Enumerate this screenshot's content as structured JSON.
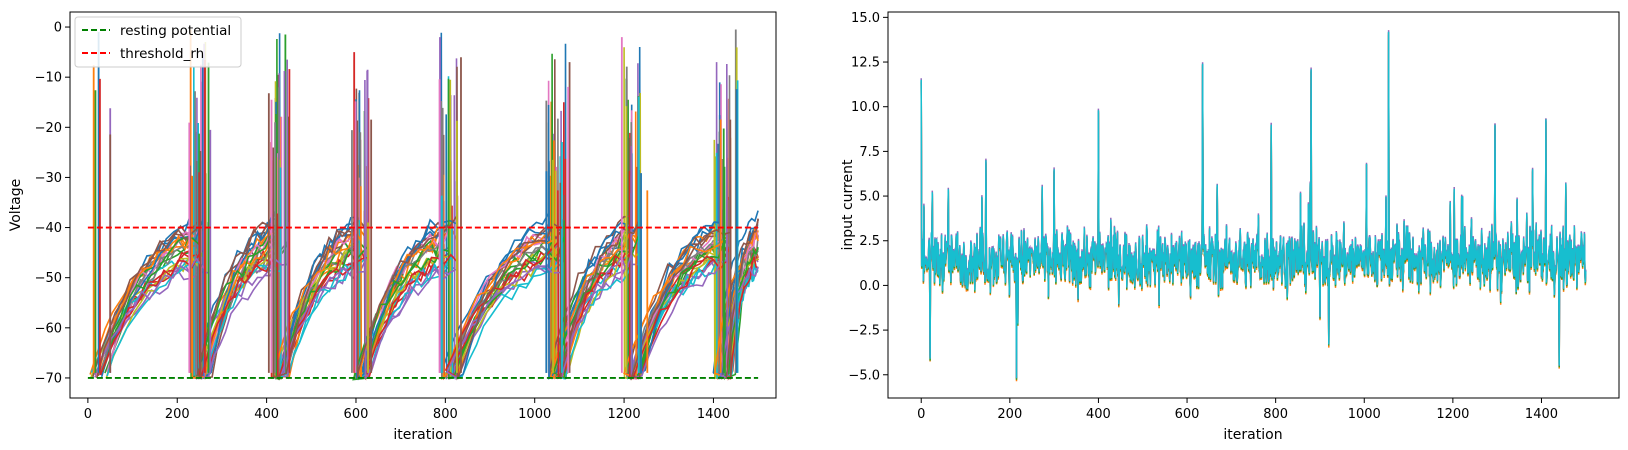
{
  "chart_data": [
    {
      "type": "line",
      "title": "",
      "xlabel": "iteration",
      "ylabel": "Voltage",
      "xlim": [
        -40,
        1540
      ],
      "ylim": [
        -74,
        3
      ],
      "xticks": [
        0,
        200,
        400,
        600,
        800,
        1000,
        1200,
        1400
      ],
      "yticks": [
        -70,
        -60,
        -50,
        -40,
        -30,
        -20,
        -10,
        0
      ],
      "grid": false,
      "legend_position": "top-left",
      "legend": [
        {
          "label": "resting potential",
          "color": "#008000",
          "style": "dashed"
        },
        {
          "label": "threshold_rh",
          "color": "#ff0000",
          "style": "dashed"
        }
      ],
      "reference_lines": [
        {
          "name": "resting potential",
          "y": -70,
          "x_range": [
            0,
            1500
          ],
          "color": "#008000"
        },
        {
          "name": "threshold_rh",
          "y": -40,
          "x_range": [
            0,
            1500
          ],
          "color": "#ff0000"
        }
      ],
      "neuron_traces": {
        "description": "many leaky integrate-and-fire voltage traces; spikes then reset to -70",
        "burst_iterations": [
          0,
          230,
          410,
          590,
          790,
          1030,
          1200,
          1400
        ],
        "peak_voltages": [
          -1,
          -0.5,
          -1.5,
          -5,
          -2,
          -7,
          -2,
          -0.5
        ],
        "series_colors": [
          "#1f77b4",
          "#ff7f0e",
          "#2ca02c",
          "#d62728",
          "#9467bd",
          "#8c564b",
          "#e377c2",
          "#7f7f7f",
          "#bcbd22",
          "#17becf"
        ]
      }
    },
    {
      "type": "line",
      "title": "",
      "xlabel": "iteration",
      "ylabel": "input current",
      "xlim": [
        -75,
        1575
      ],
      "ylim": [
        -6.3,
        15.3
      ],
      "xticks": [
        0,
        200,
        400,
        600,
        800,
        1000,
        1200,
        1400
      ],
      "yticks": [
        -5.0,
        -2.5,
        0.0,
        2.5,
        5.0,
        7.5,
        10.0,
        12.5,
        15.0
      ],
      "grid": false,
      "input_current": {
        "description": "noisy input current, mean about 1.5, many overlapping series (cyan on top)",
        "mean": 1.5,
        "range": [
          -5.2,
          14.2
        ],
        "peaks": [
          {
            "x": 0,
            "y": 11.5
          },
          {
            "x": 215,
            "y": 9.2
          },
          {
            "x": 400,
            "y": 9.8
          },
          {
            "x": 635,
            "y": 12.4
          },
          {
            "x": 880,
            "y": 12.1
          },
          {
            "x": 1055,
            "y": 14.2
          },
          {
            "x": 1295,
            "y": 9.0
          }
        ],
        "troughs": [
          {
            "x": 215,
            "y": -5.2
          },
          {
            "x": 20,
            "y": -4.1
          },
          {
            "x": 1440,
            "y": -4.5
          },
          {
            "x": 1410,
            "y": -4.3
          }
        ],
        "series_colors": [
          "#ff7f0e",
          "#2ca02c",
          "#d62728",
          "#9467bd",
          "#17becf"
        ]
      }
    }
  ]
}
